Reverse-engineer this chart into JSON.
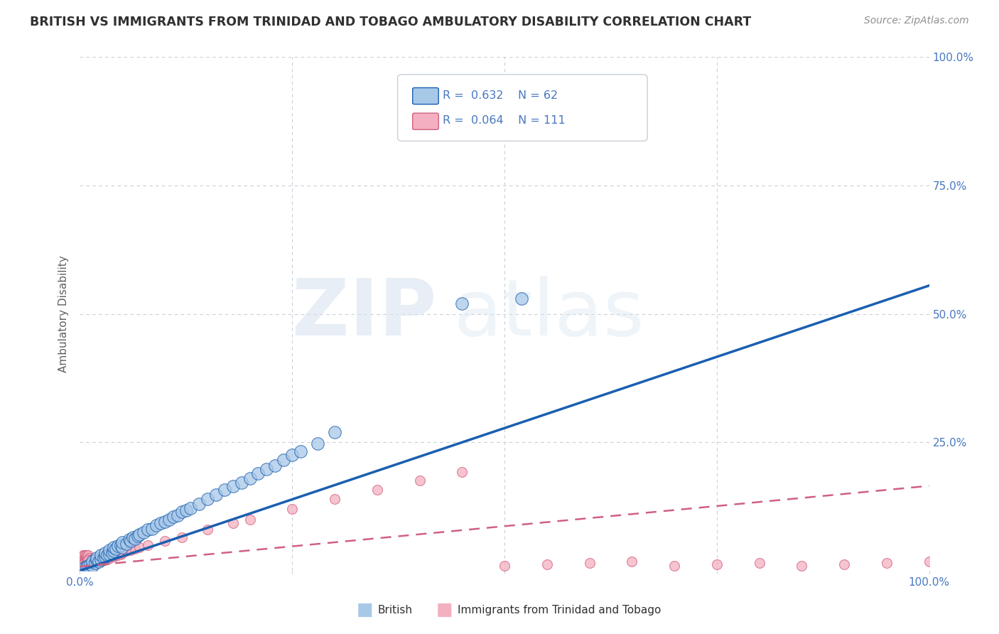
{
  "title": "BRITISH VS IMMIGRANTS FROM TRINIDAD AND TOBAGO AMBULATORY DISABILITY CORRELATION CHART",
  "source": "Source: ZipAtlas.com",
  "ylabel": "Ambulatory Disability",
  "watermark": "ZIPatlas",
  "british_color": "#a8c8e8",
  "tt_color": "#f4b0c0",
  "british_line_color": "#1a5fb0",
  "tt_line_color": "#d06080",
  "axis_color": "#4878c0",
  "title_color": "#303030",
  "background": "#ffffff",
  "grid_color": "#c8cfd8",
  "british_scatter_x": [
    0.005,
    0.008,
    0.01,
    0.012,
    0.015,
    0.015,
    0.018,
    0.02,
    0.02,
    0.022,
    0.025,
    0.025,
    0.028,
    0.03,
    0.03,
    0.032,
    0.035,
    0.035,
    0.038,
    0.04,
    0.04,
    0.042,
    0.045,
    0.048,
    0.05,
    0.05,
    0.055,
    0.058,
    0.06,
    0.062,
    0.065,
    0.068,
    0.07,
    0.075,
    0.08,
    0.085,
    0.09,
    0.095,
    0.1,
    0.105,
    0.11,
    0.115,
    0.12,
    0.125,
    0.13,
    0.14,
    0.15,
    0.16,
    0.17,
    0.18,
    0.19,
    0.2,
    0.21,
    0.22,
    0.23,
    0.24,
    0.25,
    0.26,
    0.28,
    0.3,
    0.45,
    0.52
  ],
  "british_scatter_y": [
    0.005,
    0.008,
    0.01,
    0.012,
    0.01,
    0.018,
    0.015,
    0.02,
    0.025,
    0.018,
    0.022,
    0.03,
    0.025,
    0.028,
    0.035,
    0.03,
    0.032,
    0.04,
    0.035,
    0.038,
    0.045,
    0.042,
    0.048,
    0.05,
    0.045,
    0.055,
    0.052,
    0.06,
    0.058,
    0.065,
    0.062,
    0.068,
    0.07,
    0.075,
    0.08,
    0.082,
    0.088,
    0.092,
    0.095,
    0.1,
    0.105,
    0.108,
    0.115,
    0.118,
    0.122,
    0.13,
    0.14,
    0.148,
    0.158,
    0.165,
    0.172,
    0.18,
    0.19,
    0.198,
    0.205,
    0.215,
    0.225,
    0.232,
    0.248,
    0.27,
    0.52,
    0.53
  ],
  "tt_scatter_x": [
    0.001,
    0.001,
    0.002,
    0.002,
    0.002,
    0.003,
    0.003,
    0.003,
    0.003,
    0.004,
    0.004,
    0.004,
    0.004,
    0.004,
    0.005,
    0.005,
    0.005,
    0.005,
    0.005,
    0.006,
    0.006,
    0.006,
    0.006,
    0.006,
    0.007,
    0.007,
    0.007,
    0.007,
    0.008,
    0.008,
    0.008,
    0.008,
    0.009,
    0.009,
    0.009,
    0.01,
    0.01,
    0.01,
    0.01,
    0.011,
    0.011,
    0.011,
    0.012,
    0.012,
    0.013,
    0.013,
    0.014,
    0.014,
    0.015,
    0.015,
    0.016,
    0.016,
    0.017,
    0.018,
    0.018,
    0.019,
    0.02,
    0.02,
    0.021,
    0.022,
    0.023,
    0.024,
    0.025,
    0.025,
    0.026,
    0.028,
    0.03,
    0.032,
    0.035,
    0.038,
    0.04,
    0.042,
    0.045,
    0.048,
    0.05,
    0.055,
    0.06,
    0.065,
    0.07,
    0.08,
    0.1,
    0.12,
    0.15,
    0.18,
    0.2,
    0.25,
    0.3,
    0.35,
    0.4,
    0.45,
    0.5,
    0.55,
    0.6,
    0.65,
    0.7,
    0.75,
    0.8,
    0.85,
    0.9,
    0.95,
    1.0,
    0.003,
    0.004,
    0.005,
    0.006,
    0.007,
    0.008,
    0.009,
    0.01,
    0.012,
    0.015
  ],
  "tt_scatter_y": [
    0.008,
    0.012,
    0.01,
    0.015,
    0.018,
    0.008,
    0.012,
    0.018,
    0.022,
    0.01,
    0.015,
    0.02,
    0.025,
    0.03,
    0.008,
    0.012,
    0.018,
    0.025,
    0.03,
    0.01,
    0.015,
    0.02,
    0.025,
    0.03,
    0.01,
    0.015,
    0.022,
    0.028,
    0.01,
    0.015,
    0.022,
    0.03,
    0.012,
    0.018,
    0.025,
    0.01,
    0.015,
    0.022,
    0.03,
    0.012,
    0.018,
    0.025,
    0.012,
    0.02,
    0.012,
    0.02,
    0.015,
    0.022,
    0.015,
    0.022,
    0.015,
    0.022,
    0.018,
    0.015,
    0.022,
    0.018,
    0.015,
    0.022,
    0.018,
    0.02,
    0.018,
    0.02,
    0.018,
    0.025,
    0.02,
    0.022,
    0.02,
    0.022,
    0.025,
    0.028,
    0.028,
    0.03,
    0.03,
    0.032,
    0.035,
    0.038,
    0.04,
    0.042,
    0.045,
    0.05,
    0.058,
    0.065,
    0.08,
    0.092,
    0.1,
    0.12,
    0.14,
    0.158,
    0.175,
    0.192,
    0.01,
    0.012,
    0.015,
    0.018,
    0.01,
    0.012,
    0.015,
    0.01,
    0.012,
    0.015,
    0.018,
    0.01,
    0.012,
    0.008,
    0.01,
    0.012,
    0.015,
    0.018,
    0.02,
    0.012,
    0.015
  ],
  "british_line_x": [
    0.0,
    1.0
  ],
  "british_line_y": [
    0.0,
    0.555
  ],
  "tt_line_x": [
    0.0,
    1.0
  ],
  "tt_line_y": [
    0.008,
    0.165
  ],
  "xlim": [
    0.0,
    1.0
  ],
  "ylim": [
    0.0,
    1.0
  ],
  "xticks": [
    0.0,
    0.25,
    0.5,
    0.75,
    1.0
  ],
  "xticklabels_show": [
    "0.0%",
    "100.0%"
  ],
  "ytick_labels_right": [
    "25.0%",
    "50.0%",
    "75.0%",
    "100.0%"
  ],
  "ytick_positions_right": [
    0.25,
    0.5,
    0.75,
    1.0
  ]
}
